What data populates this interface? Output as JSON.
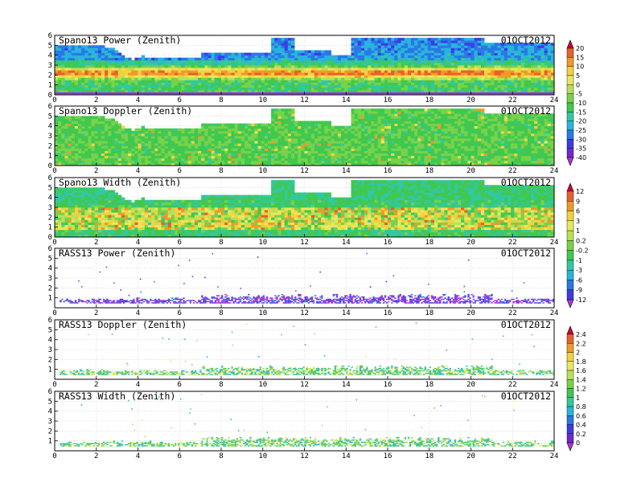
{
  "figure": {
    "date": "01OCT2012"
  },
  "chart_data": [
    {
      "type": "heatmap",
      "title": "Spano13 Power (Zenith)",
      "date_label": "01OCT2012",
      "xlim": [
        0,
        24
      ],
      "ylim": [
        0,
        6
      ],
      "xticks": [
        "0",
        "2",
        "4",
        "6",
        "8",
        "10",
        "12",
        "14",
        "16",
        "18",
        "20",
        "22",
        "24"
      ],
      "yticks": [
        "0",
        "1",
        "2",
        "3",
        "4",
        "5",
        "6"
      ],
      "grid": true
    },
    {
      "type": "heatmap",
      "title": "Spano13 Doppler (Zenith)",
      "date_label": "01OCT2012",
      "xlim": [
        0,
        24
      ],
      "ylim": [
        0,
        6
      ],
      "xticks": [
        "0",
        "2",
        "4",
        "6",
        "8",
        "10",
        "12",
        "14",
        "16",
        "18",
        "20",
        "22",
        "24"
      ],
      "yticks": [
        "0",
        "1",
        "2",
        "3",
        "4",
        "5",
        "6"
      ],
      "grid": true
    },
    {
      "type": "heatmap",
      "title": "Spano13 Width (Zenith)",
      "date_label": "01OCT2012",
      "xlim": [
        0,
        24
      ],
      "ylim": [
        0,
        6
      ],
      "xticks": [
        "0",
        "2",
        "4",
        "6",
        "8",
        "10",
        "12",
        "14",
        "16",
        "18",
        "20",
        "22",
        "24"
      ],
      "yticks": [
        "0",
        "1",
        "2",
        "3",
        "4",
        "5",
        "6"
      ],
      "grid": true
    },
    {
      "type": "heatmap",
      "title": "RASS13 Power (Zenith)",
      "date_label": "01OCT2012",
      "xlim": [
        0,
        24
      ],
      "ylim": [
        0,
        6
      ],
      "xticks": [
        "0",
        "2",
        "4",
        "6",
        "8",
        "10",
        "12",
        "14",
        "16",
        "18",
        "20",
        "22",
        "24"
      ],
      "yticks": [
        "1",
        "2",
        "3",
        "4",
        "5",
        "6"
      ],
      "grid": true
    },
    {
      "type": "heatmap",
      "title": "RASS13 Doppler (Zenith)",
      "date_label": "01OCT2012",
      "xlim": [
        0,
        24
      ],
      "ylim": [
        0,
        6
      ],
      "xticks": [
        "0",
        "2",
        "4",
        "6",
        "8",
        "10",
        "12",
        "14",
        "16",
        "18",
        "20",
        "22",
        "24"
      ],
      "yticks": [
        "1",
        "2",
        "3",
        "4",
        "5",
        "6"
      ],
      "grid": true
    },
    {
      "type": "heatmap",
      "title": "RASS13 Width (Zenith)",
      "date_label": "01OCT2012",
      "xlim": [
        0,
        24
      ],
      "ylim": [
        0,
        6
      ],
      "xticks": [
        "0",
        "2",
        "4",
        "6",
        "8",
        "10",
        "12",
        "14",
        "16",
        "18",
        "20",
        "22",
        "24"
      ],
      "yticks": [
        "1",
        "2",
        "3",
        "4",
        "5",
        "6"
      ],
      "grid": true
    }
  ],
  "colorbars": [
    {
      "applies_to": [
        "Spano13 Power (Zenith)",
        "Spano13 Doppler (Zenith)"
      ],
      "labels": [
        "20",
        "15",
        "10",
        "5",
        "0",
        "-5",
        "-10",
        "-15",
        "-20",
        "-25",
        "-30",
        "-35",
        "-40"
      ],
      "colors": [
        "#d40032",
        "#e8602a",
        "#f09a28",
        "#f5d23c",
        "#e8e860",
        "#b8e058",
        "#78d24a",
        "#40c850",
        "#32c8a0",
        "#28b4dc",
        "#2a78e6",
        "#3c3ce6",
        "#6e28d2",
        "#b432dc"
      ]
    },
    {
      "applies_to": [
        "Spano13 Width (Zenith)",
        "RASS13 Power (Zenith)"
      ],
      "labels": [
        "12",
        "9",
        "6",
        "3",
        "1",
        "0.2",
        "-0.2",
        "-1",
        "-3",
        "-6",
        "-9",
        "-12"
      ],
      "colors": [
        "#d40032",
        "#e8602a",
        "#f09a28",
        "#f5d23c",
        "#e8e860",
        "#b8e058",
        "#78d24a",
        "#40c850",
        "#32c8a0",
        "#28b4dc",
        "#2a78e6",
        "#3c3ce6",
        "#b432dc"
      ]
    },
    {
      "applies_to": [
        "RASS13 Doppler (Zenith)",
        "RASS13 Width (Zenith)"
      ],
      "labels": [
        "2.4",
        "2.2",
        "2",
        "1.8",
        "1.6",
        "1.4",
        "1.2",
        "1",
        "0.8",
        "0.6",
        "0.4",
        "0.2",
        "0"
      ],
      "colors": [
        "#d40032",
        "#e8602a",
        "#f09a28",
        "#f5d23c",
        "#e8e860",
        "#b8e058",
        "#78d24a",
        "#40c850",
        "#32c8a0",
        "#28b4dc",
        "#2a78e6",
        "#3c3ce6",
        "#6e28d2",
        "#b432dc"
      ]
    }
  ]
}
